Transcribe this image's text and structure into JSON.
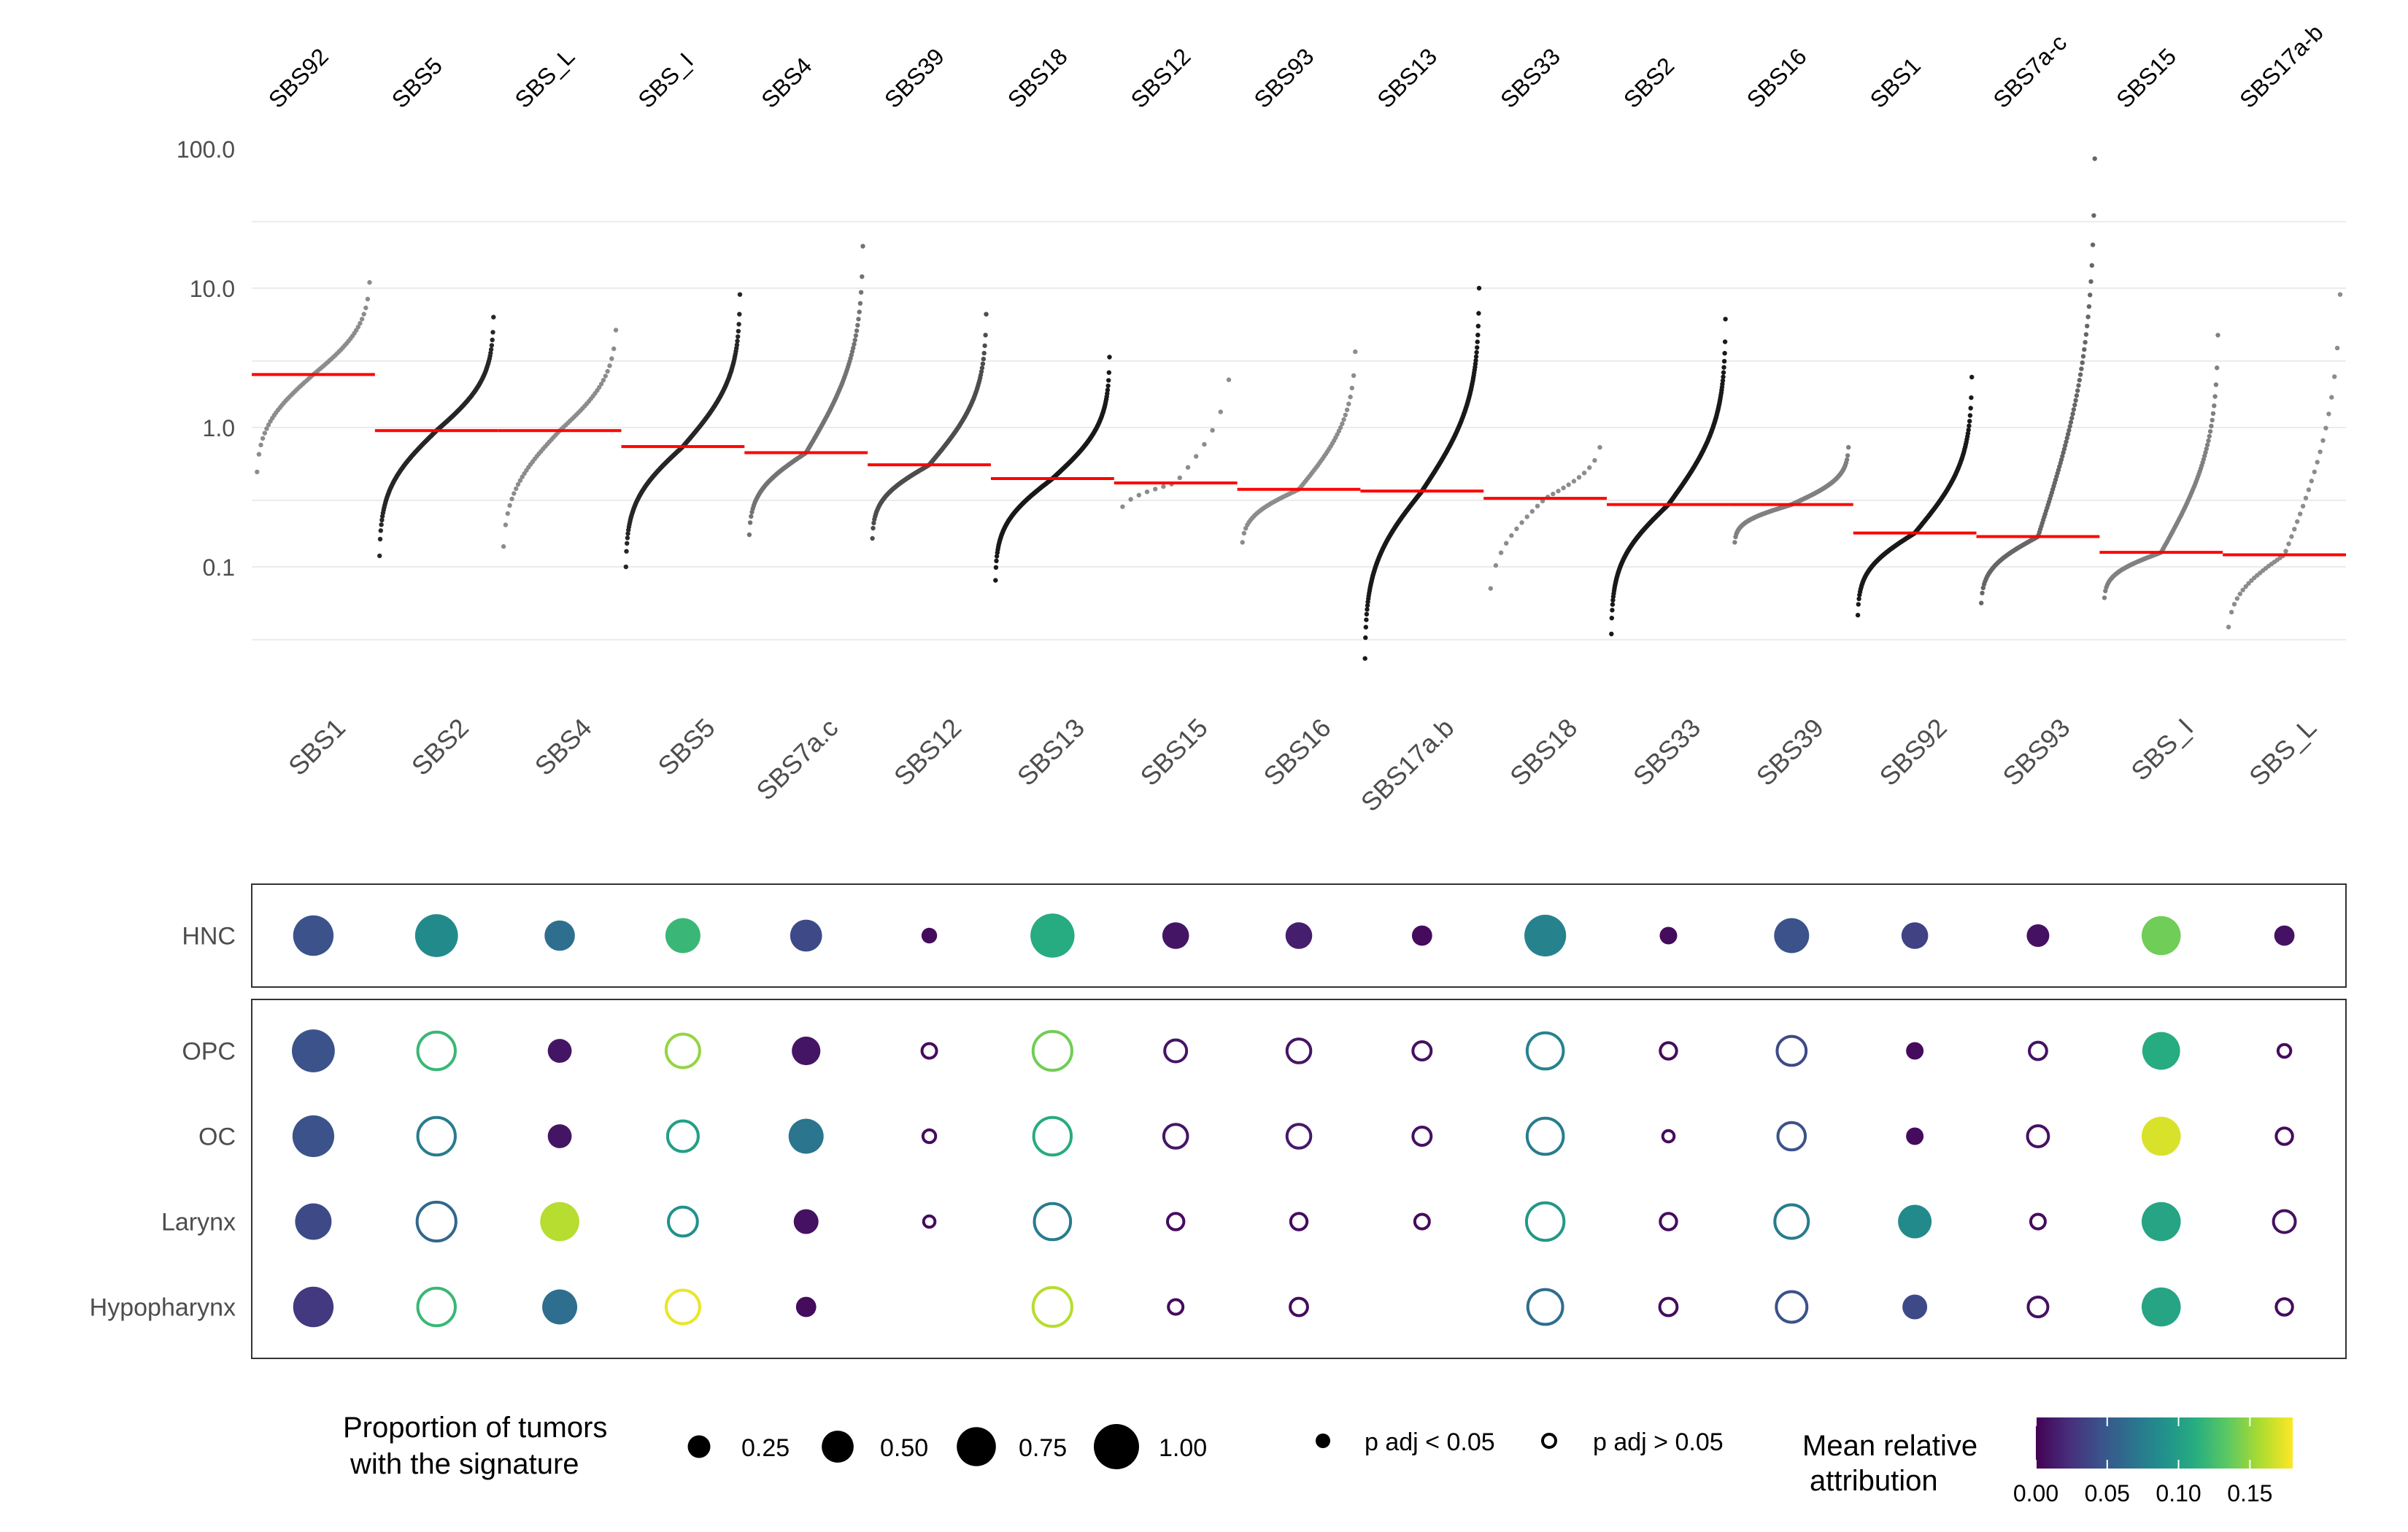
{
  "chart_data": [
    {
      "type": "scatter",
      "title": "",
      "xlabel": "",
      "ylabel": "",
      "y_scale": "log10",
      "ylim": [
        0.02,
        100
      ],
      "y_ticks": [
        0.1,
        1.0,
        10.0,
        100.0
      ],
      "y_tick_labels": [
        "0.1",
        "1.0",
        "10.0",
        "100.0"
      ],
      "grid": true,
      "grid_lines": [
        0.03,
        0.1,
        0.3,
        1,
        3,
        10,
        30
      ],
      "point_color": "#000000",
      "median_color": "#ff0000",
      "columns": [
        {
          "label": "SBS92",
          "median": 2.4,
          "n": 60,
          "min": 0.48,
          "max": 11.0,
          "shade": 0.45
        },
        {
          "label": "SBS5",
          "median": 0.95,
          "n": 200,
          "min": 0.12,
          "max": 6.2,
          "shade": 0.85
        },
        {
          "label": "SBS_L",
          "median": 0.95,
          "n": 55,
          "min": 0.14,
          "max": 5.0,
          "shade": 0.45
        },
        {
          "label": "SBS_I",
          "median": 0.73,
          "n": 230,
          "min": 0.1,
          "max": 9.0,
          "shade": 0.85
        },
        {
          "label": "SBS4",
          "median": 0.66,
          "n": 130,
          "min": 0.17,
          "max": 20.0,
          "shade": 0.55
        },
        {
          "label": "SBS39",
          "median": 0.54,
          "n": 170,
          "min": 0.16,
          "max": 6.5,
          "shade": 0.7
        },
        {
          "label": "SBS18",
          "median": 0.43,
          "n": 250,
          "min": 0.08,
          "max": 3.2,
          "shade": 0.9
        },
        {
          "label": "SBS12",
          "median": 0.4,
          "n": 14,
          "min": 0.27,
          "max": 2.2,
          "shade": 0.45
        },
        {
          "label": "SBS93",
          "median": 0.36,
          "n": 70,
          "min": 0.15,
          "max": 3.5,
          "shade": 0.45
        },
        {
          "label": "SBS13",
          "median": 0.35,
          "n": 280,
          "min": 0.022,
          "max": 10.0,
          "shade": 0.9
        },
        {
          "label": "SBS33",
          "median": 0.31,
          "n": 22,
          "min": 0.07,
          "max": 0.72,
          "shade": 0.45
        },
        {
          "label": "SBS2",
          "median": 0.28,
          "n": 300,
          "min": 0.033,
          "max": 6.0,
          "shade": 0.9
        },
        {
          "label": "SBS16",
          "median": 0.28,
          "n": 150,
          "min": 0.15,
          "max": 0.72,
          "shade": 0.5
        },
        {
          "label": "SBS1",
          "median": 0.175,
          "n": 210,
          "min": 0.045,
          "max": 2.3,
          "shade": 0.9
        },
        {
          "label": "SBS7a-c",
          "median": 0.165,
          "n": 120,
          "min": 0.055,
          "max": 85.0,
          "shade": 0.6
        },
        {
          "label": "SBS15",
          "median": 0.127,
          "n": 120,
          "min": 0.06,
          "max": 4.6,
          "shade": 0.5
        },
        {
          "label": "SBS17a-b",
          "median": 0.122,
          "n": 40,
          "min": 0.037,
          "max": 9.0,
          "shade": 0.45
        }
      ]
    },
    {
      "type": "bubble",
      "title": "",
      "x_labels": [
        "SBS1",
        "SBS2",
        "SBS4",
        "SBS5",
        "SBS7a.c",
        "SBS12",
        "SBS13",
        "SBS15",
        "SBS16",
        "SBS17a.b",
        "SBS18",
        "SBS33",
        "SBS39",
        "SBS92",
        "SBS93",
        "SBS_I",
        "SBS_L"
      ],
      "panels": [
        {
          "rows": [
            "HNC"
          ],
          "cells": [
            [
              {
                "size": 0.8,
                "attr": 0.045,
                "sig": true
              },
              {
                "size": 0.9,
                "attr": 0.085,
                "sig": true
              },
              {
                "size": 0.45,
                "attr": 0.065,
                "sig": true
              },
              {
                "size": 0.6,
                "attr": 0.12,
                "sig": true
              },
              {
                "size": 0.5,
                "attr": 0.04,
                "sig": true
              },
              {
                "size": 0.12,
                "attr": 0.005,
                "sig": true
              },
              {
                "size": 0.95,
                "attr": 0.11,
                "sig": true
              },
              {
                "size": 0.35,
                "attr": 0.01,
                "sig": true
              },
              {
                "size": 0.35,
                "attr": 0.015,
                "sig": true
              },
              {
                "size": 0.2,
                "attr": 0.005,
                "sig": true
              },
              {
                "size": 0.85,
                "attr": 0.08,
                "sig": true
              },
              {
                "size": 0.15,
                "attr": 0.005,
                "sig": true
              },
              {
                "size": 0.6,
                "attr": 0.045,
                "sig": true
              },
              {
                "size": 0.35,
                "attr": 0.035,
                "sig": true
              },
              {
                "size": 0.25,
                "attr": 0.008,
                "sig": true
              },
              {
                "size": 0.75,
                "attr": 0.14,
                "sig": true
              },
              {
                "size": 0.2,
                "attr": 0.008,
                "sig": true
              }
            ]
          ]
        },
        {
          "rows": [
            "OPC",
            "OC",
            "Larynx",
            "Hypopharynx"
          ],
          "cells": [
            [
              {
                "size": 0.9,
                "attr": 0.045,
                "sig": true
              },
              {
                "size": 0.8,
                "attr": 0.12,
                "sig": false
              },
              {
                "size": 0.28,
                "attr": 0.01,
                "sig": true
              },
              {
                "size": 0.65,
                "attr": 0.15,
                "sig": false
              },
              {
                "size": 0.4,
                "attr": 0.01,
                "sig": true
              },
              {
                "size": 0.15,
                "attr": 0.005,
                "sig": false
              },
              {
                "size": 0.85,
                "attr": 0.14,
                "sig": false
              },
              {
                "size": 0.3,
                "attr": 0.01,
                "sig": false
              },
              {
                "size": 0.35,
                "attr": 0.01,
                "sig": false
              },
              {
                "size": 0.22,
                "attr": 0.008,
                "sig": false
              },
              {
                "size": 0.75,
                "attr": 0.08,
                "sig": false
              },
              {
                "size": 0.18,
                "attr": 0.005,
                "sig": false
              },
              {
                "size": 0.5,
                "attr": 0.04,
                "sig": false
              },
              {
                "size": 0.15,
                "attr": 0.005,
                "sig": true
              },
              {
                "size": 0.2,
                "attr": 0.008,
                "sig": false
              },
              {
                "size": 0.7,
                "attr": 0.11,
                "sig": true
              },
              {
                "size": 0.12,
                "attr": 0.005,
                "sig": false
              }
            ],
            [
              {
                "size": 0.85,
                "attr": 0.045,
                "sig": true
              },
              {
                "size": 0.8,
                "attr": 0.075,
                "sig": false
              },
              {
                "size": 0.28,
                "attr": 0.01,
                "sig": true
              },
              {
                "size": 0.55,
                "attr": 0.1,
                "sig": false
              },
              {
                "size": 0.6,
                "attr": 0.07,
                "sig": true
              },
              {
                "size": 0.12,
                "attr": 0.005,
                "sig": false
              },
              {
                "size": 0.8,
                "attr": 0.11,
                "sig": false
              },
              {
                "size": 0.35,
                "attr": 0.01,
                "sig": false
              },
              {
                "size": 0.35,
                "attr": 0.012,
                "sig": false
              },
              {
                "size": 0.22,
                "attr": 0.008,
                "sig": false
              },
              {
                "size": 0.75,
                "attr": 0.075,
                "sig": false
              },
              {
                "size": 0.1,
                "attr": 0.005,
                "sig": false
              },
              {
                "size": 0.45,
                "attr": 0.045,
                "sig": false
              },
              {
                "size": 0.15,
                "attr": 0.005,
                "sig": true
              },
              {
                "size": 0.28,
                "attr": 0.008,
                "sig": false
              },
              {
                "size": 0.75,
                "attr": 0.17,
                "sig": true
              },
              {
                "size": 0.18,
                "attr": 0.005,
                "sig": false
              }
            ],
            [
              {
                "size": 0.65,
                "attr": 0.04,
                "sig": true
              },
              {
                "size": 0.85,
                "attr": 0.06,
                "sig": false
              },
              {
                "size": 0.75,
                "attr": 0.16,
                "sig": true
              },
              {
                "size": 0.5,
                "attr": 0.09,
                "sig": false
              },
              {
                "size": 0.3,
                "attr": 0.008,
                "sig": true
              },
              {
                "size": 0.1,
                "attr": 0.005,
                "sig": false
              },
              {
                "size": 0.75,
                "attr": 0.075,
                "sig": false
              },
              {
                "size": 0.18,
                "attr": 0.005,
                "sig": false
              },
              {
                "size": 0.18,
                "attr": 0.005,
                "sig": false
              },
              {
                "size": 0.15,
                "attr": 0.005,
                "sig": false
              },
              {
                "size": 0.8,
                "attr": 0.095,
                "sig": false
              },
              {
                "size": 0.18,
                "attr": 0.005,
                "sig": false
              },
              {
                "size": 0.65,
                "attr": 0.075,
                "sig": false
              },
              {
                "size": 0.55,
                "attr": 0.085,
                "sig": true
              },
              {
                "size": 0.15,
                "attr": 0.005,
                "sig": false
              },
              {
                "size": 0.75,
                "attr": 0.105,
                "sig": true
              },
              {
                "size": 0.3,
                "attr": 0.008,
                "sig": false
              }
            ],
            [
              {
                "size": 0.8,
                "attr": 0.03,
                "sig": true
              },
              {
                "size": 0.8,
                "attr": 0.12,
                "sig": false
              },
              {
                "size": 0.6,
                "attr": 0.065,
                "sig": true
              },
              {
                "size": 0.65,
                "attr": 0.175,
                "sig": false
              },
              {
                "size": 0.2,
                "attr": 0.005,
                "sig": true
              },
              {
                "size": 0.0,
                "attr": 0.0,
                "sig": false
              },
              {
                "size": 0.85,
                "attr": 0.16,
                "sig": false
              },
              {
                "size": 0.15,
                "attr": 0.005,
                "sig": false
              },
              {
                "size": 0.2,
                "attr": 0.005,
                "sig": false
              },
              {
                "size": 0.0,
                "attr": 0.0,
                "sig": false
              },
              {
                "size": 0.7,
                "attr": 0.065,
                "sig": false
              },
              {
                "size": 0.2,
                "attr": 0.005,
                "sig": false
              },
              {
                "size": 0.55,
                "attr": 0.045,
                "sig": false
              },
              {
                "size": 0.3,
                "attr": 0.04,
                "sig": true
              },
              {
                "size": 0.25,
                "attr": 0.008,
                "sig": false
              },
              {
                "size": 0.75,
                "attr": 0.105,
                "sig": true
              },
              {
                "size": 0.18,
                "attr": 0.005,
                "sig": false
              }
            ]
          ]
        }
      ]
    }
  ],
  "legend": {
    "size_title_line1": "Proportion of tumors",
    "size_title_line2": "with the signature",
    "size_values": [
      "0.25",
      "0.50",
      "0.75",
      "1.00"
    ],
    "sig_label": "p adj < 0.05",
    "nonsig_label": "p adj > 0.05",
    "color_title_line1": "Mean relative",
    "color_title_line2": "attribution",
    "color_ticks": [
      "0.00",
      "0.05",
      "0.10",
      "0.15"
    ],
    "color_range": [
      0,
      0.18
    ],
    "colormap": "viridis"
  }
}
